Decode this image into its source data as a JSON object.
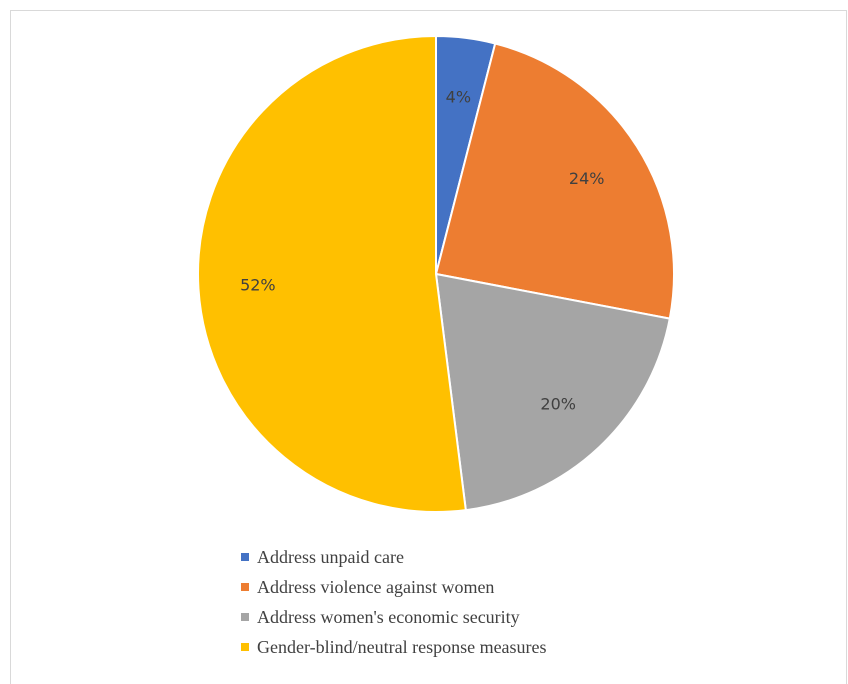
{
  "chart_data": {
    "type": "pie",
    "title": "",
    "categories": [
      "Address unpaid care",
      "Address violence against women",
      "Address women's economic security",
      "Gender-blind/neutral response measures"
    ],
    "values": [
      4,
      24,
      20,
      52
    ],
    "data_labels": [
      "4%",
      "24%",
      "20%",
      "52%"
    ],
    "colors": [
      "#4472c4",
      "#ed7d31",
      "#a5a5a5",
      "#ffc000"
    ],
    "start_angle": "12 o'clock",
    "direction": "clockwise",
    "legend": "bottom"
  }
}
